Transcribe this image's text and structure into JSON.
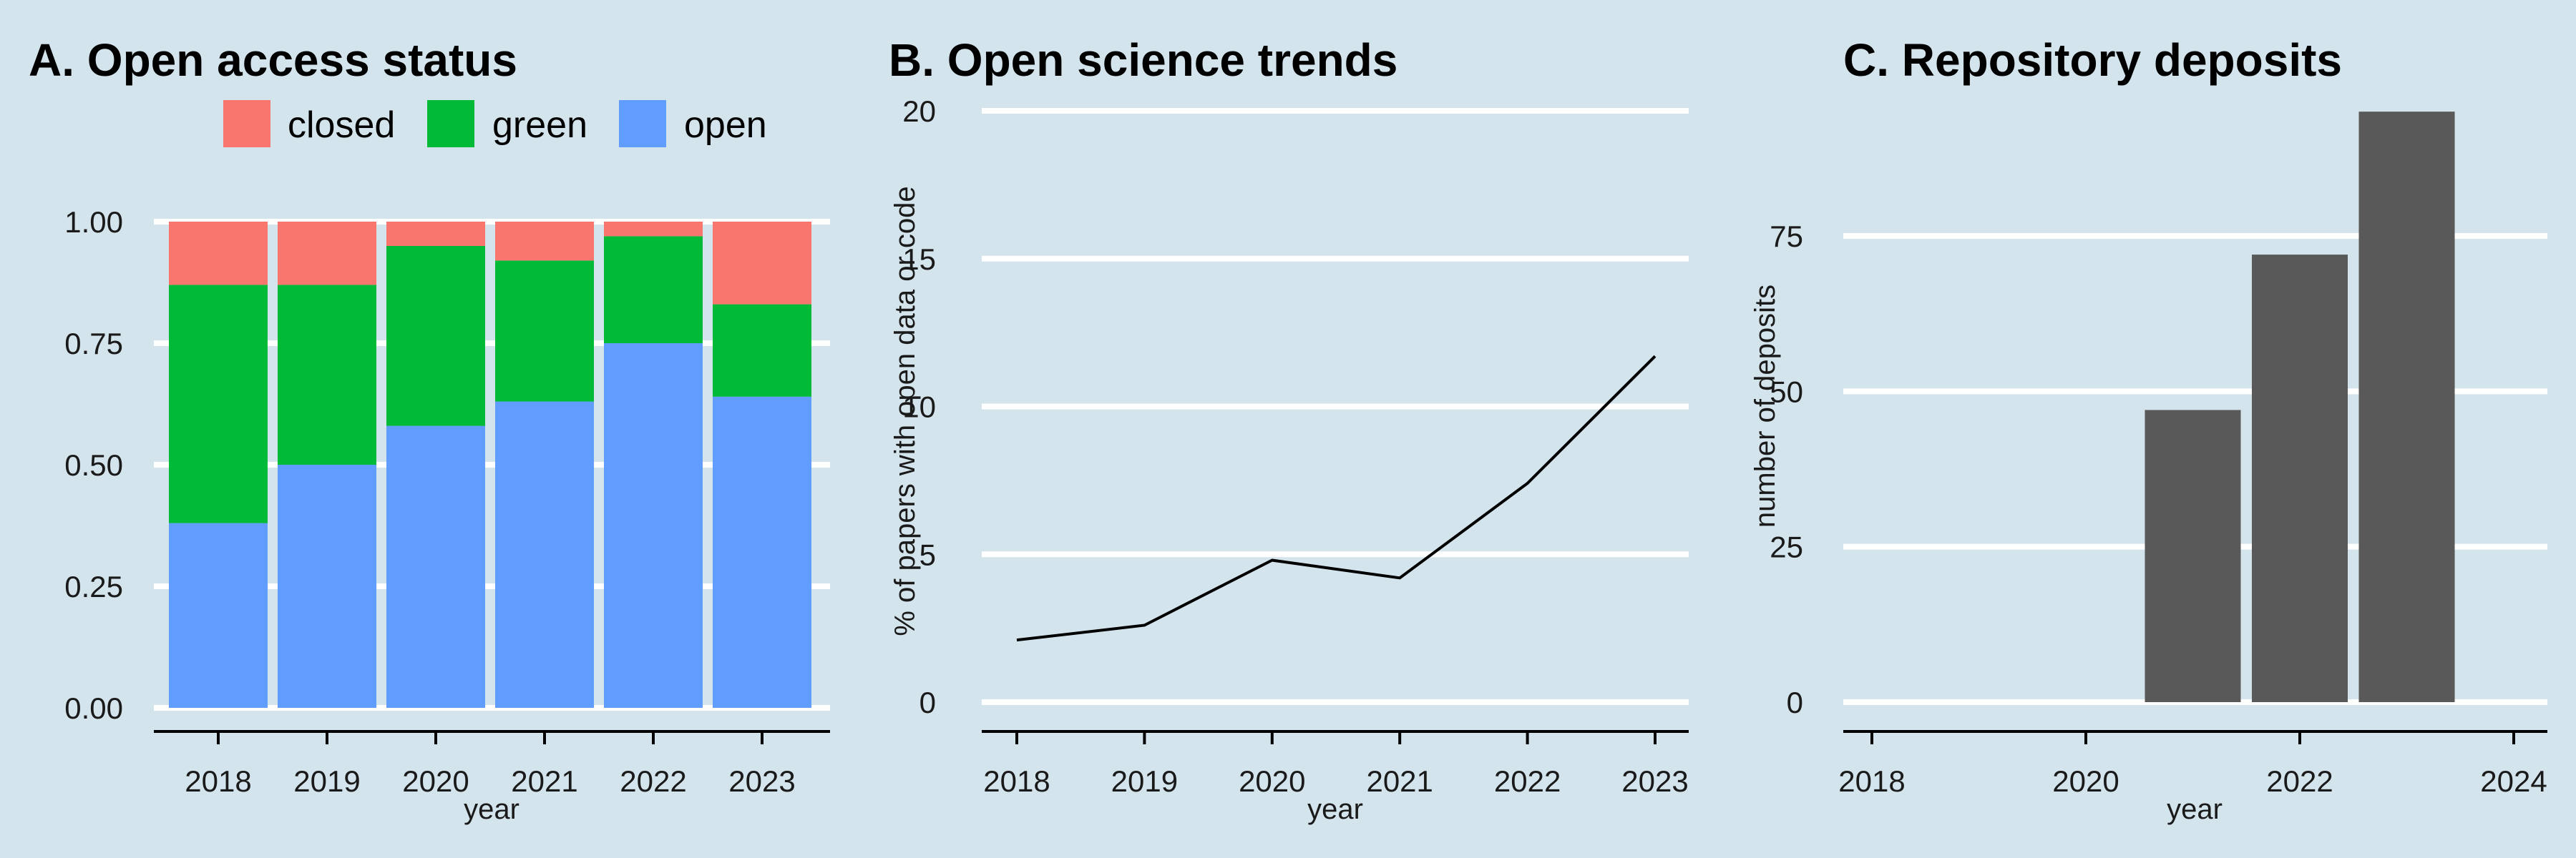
{
  "colors": {
    "background": "#d4e4ec",
    "closed": "#f8766d",
    "green": "#00ba38",
    "open": "#619cff",
    "bar": "#595959",
    "line": "#000000"
  },
  "chart_data": [
    {
      "panel": "A",
      "type": "bar",
      "stacked": true,
      "title": "A. Open access status",
      "xlabel": "year",
      "ylabel": "",
      "ylim": [
        0,
        1
      ],
      "yticks": [
        "0.00",
        "0.25",
        "0.50",
        "0.75",
        "1.00"
      ],
      "categories": [
        "2018",
        "2019",
        "2020",
        "2021",
        "2022",
        "2023"
      ],
      "legend_position": "top",
      "series": [
        {
          "name": "open",
          "values": [
            0.38,
            0.5,
            0.58,
            0.63,
            0.75,
            0.64
          ]
        },
        {
          "name": "green",
          "values": [
            0.49,
            0.37,
            0.37,
            0.29,
            0.22,
            0.19
          ]
        },
        {
          "name": "closed",
          "values": [
            0.13,
            0.13,
            0.05,
            0.08,
            0.03,
            0.17
          ]
        }
      ],
      "legend_order": [
        "closed",
        "green",
        "open"
      ],
      "grid": true
    },
    {
      "panel": "B",
      "type": "line",
      "title": "B. Open science trends",
      "xlabel": "year",
      "ylabel": "% of papers with open data or code",
      "x": [
        "2018",
        "2019",
        "2020",
        "2021",
        "2022",
        "2023"
      ],
      "values": [
        2.1,
        2.6,
        4.8,
        4.2,
        7.4,
        11.7
      ],
      "ylim": [
        0,
        20
      ],
      "yticks": [
        "0",
        "5",
        "10",
        "15",
        "20"
      ],
      "grid": true
    },
    {
      "panel": "C",
      "type": "bar",
      "title": "C. Repository deposits",
      "xlabel": "year",
      "ylabel": "number of deposits",
      "categories": [
        "2021",
        "2022",
        "2023"
      ],
      "values": [
        47,
        72,
        95
      ],
      "xticks": [
        "2018",
        "2020",
        "2022",
        "2024"
      ],
      "yticks": [
        "0",
        "25",
        "50",
        "75"
      ],
      "ylim": [
        0,
        95
      ],
      "grid": true
    }
  ]
}
